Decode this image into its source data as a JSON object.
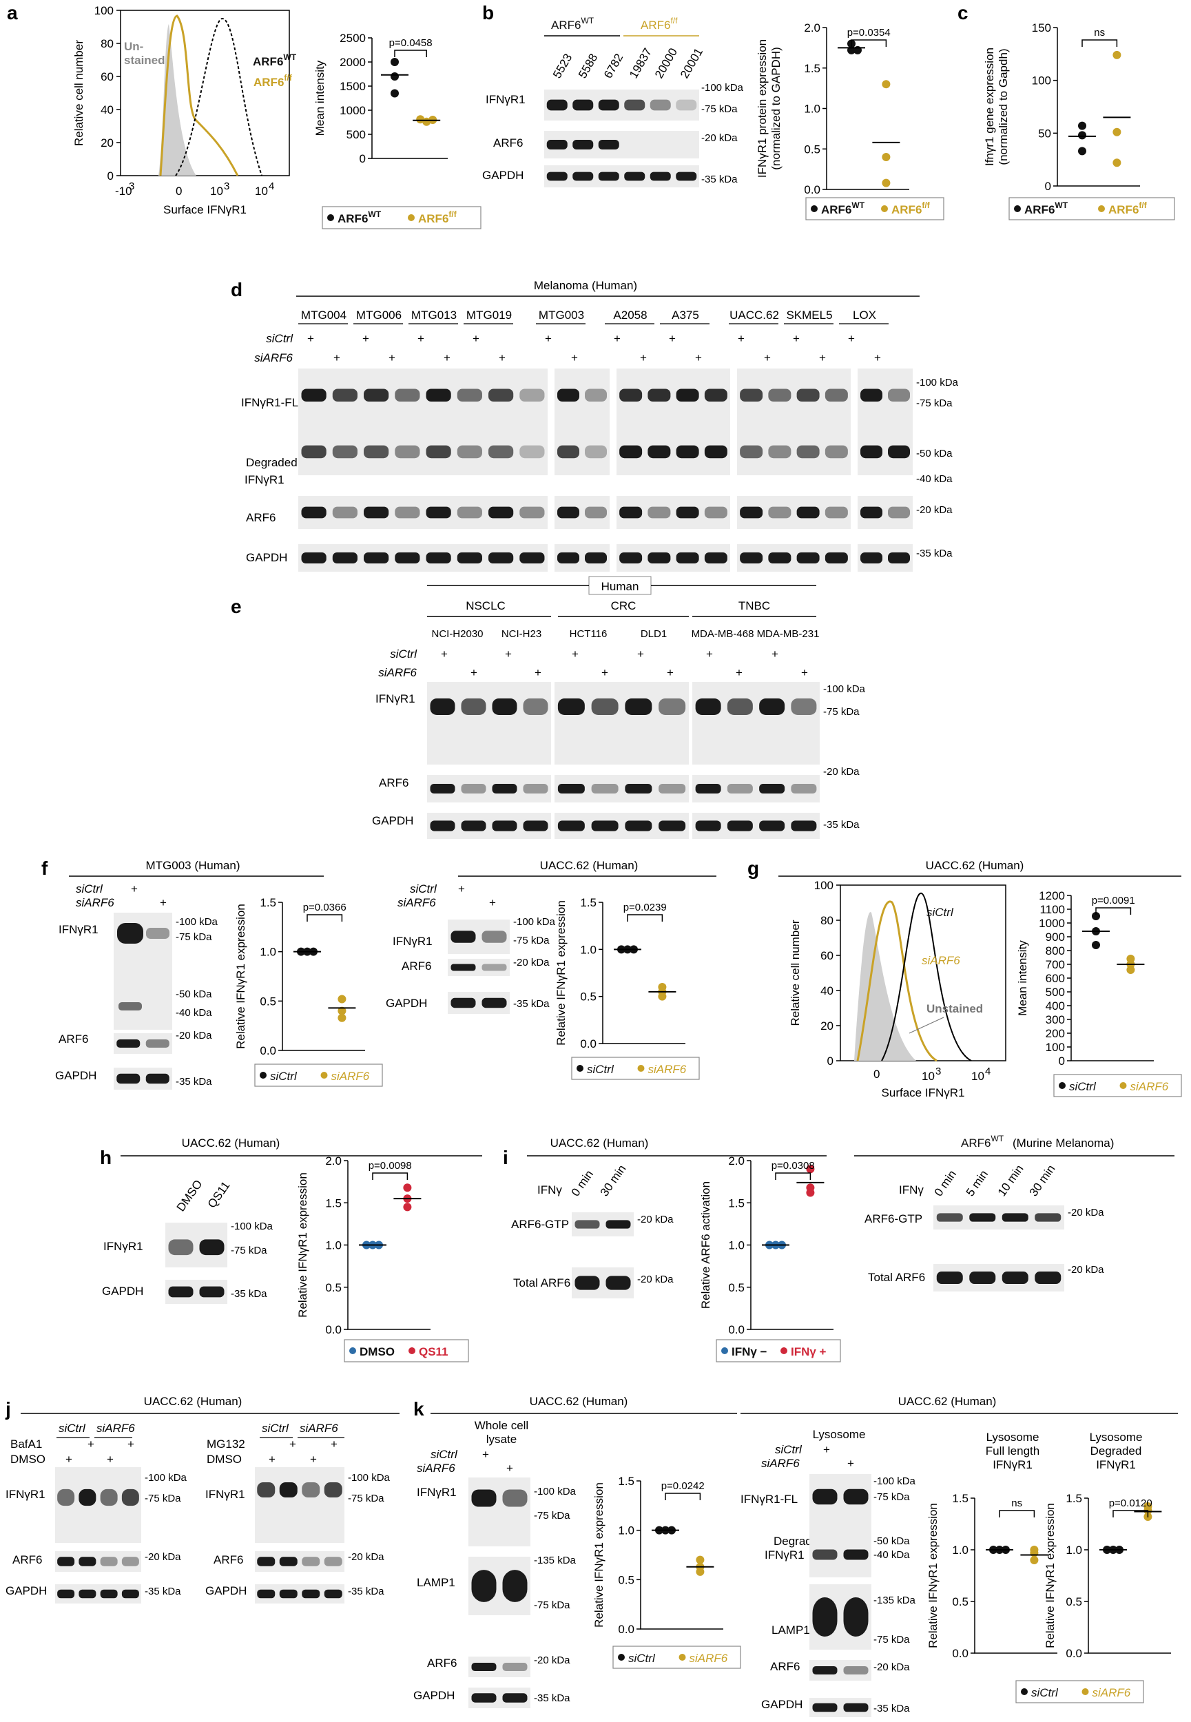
{
  "colors": {
    "black": "#111111",
    "gold": "#c9a227",
    "red": "#d0283a",
    "blue": "#2d6da8",
    "gray": "#aaaaaa",
    "unstained": "#cfcfcf"
  },
  "panels": {
    "a": {
      "label": "a",
      "hist": {
        "ylabel": "Relative cell number",
        "xlabel": "Surface IFNγR1",
        "yticks": [
          "0",
          "20",
          "40",
          "60",
          "80",
          "100"
        ],
        "xticks": [
          "-10",
          "3",
          "0",
          "10",
          "3",
          "10",
          "4"
        ],
        "unstained": "Un-\nstained",
        "wt": "ARF6",
        "wt_sup": "WT",
        "ff": "ARF6",
        "ff_sup": "f/f"
      }
    },
    "b": {
      "label": "b",
      "group1": "ARF6",
      "group1_sup": "WT",
      "group2": "ARF6",
      "group2_sup": "f/f",
      "samples": [
        "5523",
        "5588",
        "6782",
        "19837",
        "20000",
        "20001"
      ],
      "rows": [
        "IFNγR1",
        "ARF6",
        "GAPDH"
      ],
      "markers": [
        "-100 kDa",
        "-75 kDa",
        "-20 kDa",
        "-35 kDa"
      ]
    },
    "c": {
      "label": "c"
    },
    "d": {
      "label": "d",
      "title": "Melanoma (Human)",
      "lines": [
        "MTG004",
        "MTG006",
        "MTG013",
        "MTG019",
        "MTG003",
        "A2058",
        "A375",
        "UACC.62",
        "SKMEL5",
        "LOX"
      ],
      "rows": [
        "IFNγR1-FL",
        "Degraded",
        "IFNγR1",
        "ARF6",
        "GAPDH"
      ],
      "markers": [
        "-100 kDa",
        "-75 kDa",
        "-50 kDa",
        "-40 kDa",
        "-20 kDa",
        "-35 kDa"
      ]
    },
    "e": {
      "label": "e",
      "title": "Human",
      "groups": [
        "NSCLC",
        "CRC",
        "TNBC"
      ],
      "lines": [
        "NCI-H2030",
        "NCI-H23",
        "HCT116",
        "DLD1",
        "MDA-MB-468",
        "MDA-MB-231"
      ],
      "rows": [
        "IFNγR1",
        "ARF6",
        "GAPDH"
      ],
      "markers": [
        "-100 kDa",
        "-75 kDa",
        "-20 kDa",
        "-35 kDa"
      ]
    },
    "f": {
      "label": "f",
      "title1": "MTG003 (Human)",
      "title2": "UACC.62 (Human)",
      "rows1": [
        "IFNγR1",
        "ARF6",
        "GAPDH"
      ],
      "rows2": [
        "IFNγR1",
        "ARF6",
        "GAPDH"
      ],
      "markers1": [
        "-100 kDa",
        "-75 kDa",
        "-50 kDa",
        "-40 kDa",
        "-20 kDa",
        "-35 kDa"
      ],
      "markers2": [
        "-100 kDa",
        "-75 kDa",
        "-20 kDa",
        "-35 kDa"
      ]
    },
    "g": {
      "label": "g",
      "title": "UACC.62 (Human)",
      "hist": {
        "ylabel": "Relative cell number",
        "xlabel": "Surface IFNγR1",
        "yticks": [
          "0",
          "20",
          "40",
          "60",
          "80",
          "100"
        ],
        "xticks": [
          "0",
          "10",
          "3",
          "10",
          "4"
        ],
        "c1": "siCtrl",
        "c2": "siARF6",
        "c3": "Unstained"
      }
    },
    "h": {
      "label": "h",
      "title": "UACC.62 (Human)",
      "lanes": [
        "DMSO",
        "QS11"
      ],
      "rows": [
        "IFNγR1",
        "GAPDH"
      ],
      "markers": [
        "-100 kDa",
        "-75 kDa",
        "-35 kDa"
      ]
    },
    "i": {
      "label": "i",
      "title1": "UACC.62 (Human)",
      "title2": "ARF6",
      "title2_sup": "WT",
      "title2_rest": " (Murine Melanoma)",
      "ifng": "IFNγ",
      "lanes1": [
        "0 min",
        "30 min"
      ],
      "lanes2": [
        "0 min",
        "5 min",
        "10 min",
        "30 min"
      ],
      "rows": [
        "ARF6-GTP",
        "Total ARF6"
      ],
      "marker": "-20 kDa"
    },
    "j": {
      "label": "j",
      "title": "UACC.62 (Human)",
      "treat1": "BafA1",
      "treat2": "MG132",
      "dmso": "DMSO",
      "rows": [
        "IFNγR1",
        "ARF6",
        "GAPDH"
      ],
      "markers": [
        "-100 kDa",
        "-75 kDa",
        "-20 kDa",
        "-35 kDa"
      ]
    },
    "k": {
      "label": "k",
      "title1": "UACC.62 (Human)",
      "title2": "UACC.62 (Human)",
      "wcl": "Whole cell\nlysate",
      "lys": "Lysosome",
      "rows1": [
        "IFNγR1",
        "LAMP1",
        "ARF6",
        "GAPDH"
      ],
      "rows2": [
        "IFNγR1-FL",
        "Degraded",
        "IFNγR1",
        "LAMP1",
        "ARF6",
        "GAPDH"
      ],
      "markers1": [
        "-100 kDa",
        "-75 kDa",
        "-135 kDa",
        "-75 kDa",
        "-20 kDa",
        "-35 kDa"
      ],
      "markers2": [
        "-100 kDa",
        "-75 kDa",
        "-50 kDa",
        "-40 kDa",
        "-135 kDa",
        "-75 kDa",
        "-20 kDa",
        "-35 kDa"
      ]
    }
  },
  "legends": {
    "wt_ff": {
      "a": "ARF6",
      "a_sup": "WT",
      "b": "ARF6",
      "b_sup": "f/f"
    },
    "si": {
      "a": "siCtrl",
      "b": "siARF6"
    },
    "dmso_qs11": {
      "a": "DMSO",
      "b": "QS11"
    },
    "ifng": {
      "a": "IFNγ −",
      "b": "IFNγ +"
    }
  },
  "labels": {
    "siCtrl": "siCtrl",
    "siARF6": "siARF6",
    "plus": "+"
  },
  "chart_data": [
    {
      "panel": "a",
      "type": "scatter",
      "ylabel": "Mean intensity",
      "ylim": [
        0,
        2500
      ],
      "yticks": [
        "0",
        "500",
        "1000",
        "1500",
        "2000",
        "2500"
      ],
      "pvalue": "p=0.0458",
      "series": [
        {
          "name": "ARF6WT",
          "color": "#111111",
          "values": [
            2000,
            1700,
            1350
          ],
          "mean": 1733
        },
        {
          "name": "ARF6f/f",
          "color": "#c9a227",
          "values": [
            810,
            760,
            800
          ],
          "mean": 790
        }
      ]
    },
    {
      "panel": "b",
      "type": "scatter",
      "ylabel": "IFNγR1 protein expression",
      "ylabel2": "(normalized to GAPDH)",
      "ylim": [
        0,
        2.0
      ],
      "yticks": [
        "0.0",
        "0.5",
        "1.0",
        "1.5",
        "2.0"
      ],
      "pvalue": "p=0.0354",
      "series": [
        {
          "name": "ARF6WT",
          "color": "#111111",
          "values": [
            1.8,
            1.72,
            1.72
          ],
          "mean": 1.75
        },
        {
          "name": "ARF6f/f",
          "color": "#c9a227",
          "values": [
            1.3,
            0.4,
            0.08
          ],
          "mean": 0.58
        }
      ]
    },
    {
      "panel": "c",
      "type": "scatter",
      "ylabel": "Ifnγr1 gene expression",
      "ylabel2": "(normalized to Gapdh)",
      "ylim": [
        0,
        150
      ],
      "yticks": [
        "0",
        "50",
        "100",
        "150"
      ],
      "pvalue": "ns",
      "series": [
        {
          "name": "ARF6WT",
          "color": "#111111",
          "values": [
            57,
            48,
            33
          ],
          "mean": 47
        },
        {
          "name": "ARF6f/f",
          "color": "#c9a227",
          "values": [
            124,
            51,
            22
          ],
          "mean": 65
        }
      ]
    },
    {
      "panel": "f1",
      "type": "scatter",
      "ylabel": "Relative IFNγR1 expression",
      "ylim": [
        0,
        1.5
      ],
      "yticks": [
        "0.0",
        "0.5",
        "1.0",
        "1.5"
      ],
      "pvalue": "p=0.0366",
      "series": [
        {
          "name": "siCtrl",
          "color": "#111111",
          "values": [
            1.0,
            1.0,
            1.0
          ],
          "mean": 1.0
        },
        {
          "name": "siARF6",
          "color": "#c9a227",
          "values": [
            0.52,
            0.4,
            0.33
          ],
          "mean": 0.43
        }
      ]
    },
    {
      "panel": "f2",
      "type": "scatter",
      "ylabel": "Relative IFNγR1 expression",
      "ylim": [
        0,
        1.5
      ],
      "yticks": [
        "0.0",
        "0.5",
        "1.0",
        "1.5"
      ],
      "pvalue": "p=0.0239",
      "series": [
        {
          "name": "siCtrl",
          "color": "#111111",
          "values": [
            1.0,
            1.0,
            1.0
          ],
          "mean": 1.0
        },
        {
          "name": "siARF6",
          "color": "#c9a227",
          "values": [
            0.6,
            0.55,
            0.5
          ],
          "mean": 0.55
        }
      ]
    },
    {
      "panel": "g",
      "type": "scatter",
      "ylabel": "Mean intensity",
      "ylim": [
        0,
        1200
      ],
      "yticks": [
        "0",
        "100",
        "200",
        "300",
        "400",
        "500",
        "600",
        "700",
        "800",
        "900",
        "1000",
        "1100",
        "1200"
      ],
      "pvalue": "p=0.0091",
      "series": [
        {
          "name": "siCtrl",
          "color": "#111111",
          "values": [
            1050,
            940,
            840
          ],
          "mean": 940
        },
        {
          "name": "siARF6",
          "color": "#c9a227",
          "values": [
            740,
            700,
            660
          ],
          "mean": 700
        }
      ]
    },
    {
      "panel": "h",
      "type": "scatter",
      "ylabel": "Relative IFNγR1 expression",
      "ylim": [
        0,
        2.0
      ],
      "yticks": [
        "0.0",
        "0.5",
        "1.0",
        "1.5",
        "2.0"
      ],
      "pvalue": "p=0.0098",
      "series": [
        {
          "name": "DMSO",
          "color": "#2d6da8",
          "values": [
            1.0,
            1.0,
            1.0
          ],
          "mean": 1.0
        },
        {
          "name": "QS11",
          "color": "#d0283a",
          "values": [
            1.68,
            1.55,
            1.45
          ],
          "mean": 1.55
        }
      ]
    },
    {
      "panel": "i",
      "type": "scatter",
      "ylabel": "Relative ARF6 activation",
      "ylim": [
        0,
        2.0
      ],
      "yticks": [
        "0.0",
        "0.5",
        "1.0",
        "1.5",
        "2.0"
      ],
      "pvalue": "p=0.0308",
      "series": [
        {
          "name": "IFNγ −",
          "color": "#2d6da8",
          "values": [
            1.0,
            1.0,
            1.0
          ],
          "mean": 1.0
        },
        {
          "name": "IFNγ +",
          "color": "#d0283a",
          "values": [
            1.9,
            1.68,
            1.62
          ],
          "mean": 1.74
        }
      ]
    },
    {
      "panel": "k1",
      "type": "scatter",
      "title": "Whole cell\nlysate",
      "ylabel": "Relative IFNγR1 expression",
      "ylim": [
        0,
        1.5
      ],
      "yticks": [
        "0.0",
        "0.5",
        "1.0",
        "1.5"
      ],
      "pvalue": "p=0.0242",
      "series": [
        {
          "name": "siCtrl",
          "color": "#111111",
          "values": [
            1.0,
            1.0,
            1.0
          ],
          "mean": 1.0
        },
        {
          "name": "siARF6",
          "color": "#c9a227",
          "values": [
            0.7,
            0.63,
            0.58
          ],
          "mean": 0.63
        }
      ]
    },
    {
      "panel": "k2",
      "type": "scatter",
      "title": "Lysosome\nFull length\nIFNγR1",
      "ylabel": "Relative IFNγR1 expression",
      "ylim": [
        0,
        1.5
      ],
      "yticks": [
        "0.0",
        "0.5",
        "1.0",
        "1.5"
      ],
      "pvalue": "ns",
      "series": [
        {
          "name": "siCtrl",
          "color": "#111111",
          "values": [
            1.0,
            1.0,
            1.0
          ],
          "mean": 1.0
        },
        {
          "name": "siARF6",
          "color": "#c9a227",
          "values": [
            1.0,
            0.97,
            0.9
          ],
          "mean": 0.95
        }
      ]
    },
    {
      "panel": "k3",
      "type": "scatter",
      "title": "Lysosome\nDegraded\nIFNγR1",
      "ylabel": "Relative IFNγR1 expression",
      "ylim": [
        0,
        1.5
      ],
      "yticks": [
        "0.0",
        "0.5",
        "1.0",
        "1.5"
      ],
      "pvalue": "p=0.0120",
      "series": [
        {
          "name": "siCtrl",
          "color": "#111111",
          "values": [
            1.0,
            1.0,
            1.0
          ],
          "mean": 1.0
        },
        {
          "name": "siARF6",
          "color": "#c9a227",
          "values": [
            1.42,
            1.38,
            1.32
          ],
          "mean": 1.37
        }
      ]
    }
  ]
}
